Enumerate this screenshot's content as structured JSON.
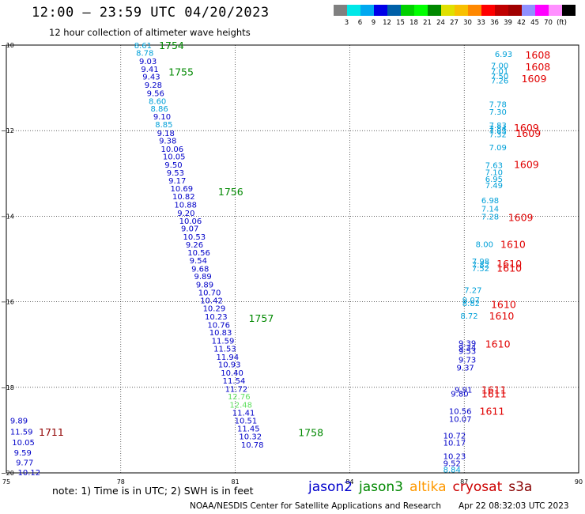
{
  "title": "12:00 – 23:59 UTC 04/20/2023",
  "subtitle": "12 hour collection of altimeter wave heights",
  "scale": {
    "colors": [
      "#808080",
      "#00e8e8",
      "#00a8f0",
      "#0000e8",
      "#0060a8",
      "#00d000",
      "#00ff00",
      "#008800",
      "#e0e000",
      "#f8c000",
      "#ff8800",
      "#ff0000",
      "#c00000",
      "#a00000",
      "#9090ff",
      "#ff00ff",
      "#ff90ff",
      "#000000"
    ],
    "labels": [
      "3",
      "6",
      "9",
      "12",
      "15",
      "18",
      "21",
      "24",
      "27",
      "30",
      "33",
      "36",
      "39",
      "42",
      "45",
      "70",
      "(ft)"
    ]
  },
  "axes": {
    "lon_labels": [
      "75",
      "78",
      "81",
      "84",
      "87",
      "90"
    ],
    "lat_labels": [
      "−10",
      "−12",
      "−14",
      "−16",
      "−18",
      "−20"
    ]
  },
  "tracks": [
    {
      "color": "#0000c8",
      "points": [
        {
          "lat": -10.0,
          "lon": 78.35,
          "v": "8.61",
          "c": "#00a0d8"
        },
        {
          "lat": -10.18,
          "lon": 78.4,
          "v": "8.78",
          "c": "#00a0d8"
        },
        {
          "lat": -10.37,
          "lon": 78.48,
          "v": "9.03"
        },
        {
          "lat": -10.55,
          "lon": 78.53,
          "v": "9.41"
        },
        {
          "lat": -10.73,
          "lon": 78.57,
          "v": "9.43"
        },
        {
          "lat": -10.92,
          "lon": 78.62,
          "v": "9.28"
        },
        {
          "lat": -11.12,
          "lon": 78.68,
          "v": "9.56"
        },
        {
          "lat": -11.3,
          "lon": 78.73,
          "v": "8.60",
          "c": "#00a0d8"
        },
        {
          "lat": -11.48,
          "lon": 78.78,
          "v": "8.86",
          "c": "#00a0d8"
        },
        {
          "lat": -11.66,
          "lon": 78.85,
          "v": "9.10"
        },
        {
          "lat": -11.85,
          "lon": 78.9,
          "v": "8.85",
          "c": "#00a0d8"
        },
        {
          "lat": -12.05,
          "lon": 78.95,
          "v": "9.18"
        },
        {
          "lat": -12.23,
          "lon": 79.0,
          "v": "9.38"
        },
        {
          "lat": -12.42,
          "lon": 79.05,
          "v": "10.06"
        },
        {
          "lat": -12.6,
          "lon": 79.1,
          "v": "10.05"
        },
        {
          "lat": -12.79,
          "lon": 79.15,
          "v": "9.50"
        },
        {
          "lat": -12.98,
          "lon": 79.2,
          "v": "9.53"
        },
        {
          "lat": -13.16,
          "lon": 79.25,
          "v": "9.17"
        },
        {
          "lat": -13.35,
          "lon": 79.3,
          "v": "10.69"
        },
        {
          "lat": -13.53,
          "lon": 79.35,
          "v": "10.82"
        },
        {
          "lat": -13.72,
          "lon": 79.4,
          "v": "10.88"
        },
        {
          "lat": -13.92,
          "lon": 79.48,
          "v": "9.20"
        },
        {
          "lat": -14.1,
          "lon": 79.53,
          "v": "10.06"
        },
        {
          "lat": -14.28,
          "lon": 79.58,
          "v": "9.07"
        },
        {
          "lat": -14.47,
          "lon": 79.63,
          "v": "10.53"
        },
        {
          "lat": -14.66,
          "lon": 79.7,
          "v": "9.26"
        },
        {
          "lat": -14.84,
          "lon": 79.75,
          "v": "10.56"
        },
        {
          "lat": -15.03,
          "lon": 79.8,
          "v": "9.54"
        },
        {
          "lat": -15.22,
          "lon": 79.85,
          "v": "9.68"
        },
        {
          "lat": -15.4,
          "lon": 79.92,
          "v": "9.89"
        },
        {
          "lat": -15.59,
          "lon": 79.97,
          "v": "9.89"
        },
        {
          "lat": -15.78,
          "lon": 80.03,
          "v": "10.70"
        },
        {
          "lat": -15.96,
          "lon": 80.08,
          "v": "10.42"
        },
        {
          "lat": -16.15,
          "lon": 80.15,
          "v": "10.29"
        },
        {
          "lat": -16.34,
          "lon": 80.2,
          "v": "10.23"
        },
        {
          "lat": -16.53,
          "lon": 80.27,
          "v": "10.76"
        },
        {
          "lat": -16.71,
          "lon": 80.32,
          "v": "10.83"
        },
        {
          "lat": -16.9,
          "lon": 80.38,
          "v": "11.59"
        },
        {
          "lat": -17.09,
          "lon": 80.43,
          "v": "11.53"
        },
        {
          "lat": -17.28,
          "lon": 80.5,
          "v": "11.94"
        },
        {
          "lat": -17.46,
          "lon": 80.55,
          "v": "10.93"
        },
        {
          "lat": -17.65,
          "lon": 80.62,
          "v": "10.40"
        },
        {
          "lat": -17.84,
          "lon": 80.67,
          "v": "11.54"
        },
        {
          "lat": -18.03,
          "lon": 80.73,
          "v": "11.72"
        },
        {
          "lat": -18.21,
          "lon": 80.8,
          "v": "12.76",
          "c": "#60e060"
        },
        {
          "lat": -18.4,
          "lon": 80.85,
          "v": "12.48",
          "c": "#60e060"
        },
        {
          "lat": -18.59,
          "lon": 80.92,
          "v": "11.41"
        },
        {
          "lat": -18.77,
          "lon": 80.98,
          "v": "10.51"
        },
        {
          "lat": -18.96,
          "lon": 81.05,
          "v": "11.45"
        },
        {
          "lat": -19.14,
          "lon": 81.1,
          "v": "10.32"
        },
        {
          "lat": -19.33,
          "lon": 81.15,
          "v": "10.78"
        }
      ]
    },
    {
      "color": "#0000c8",
      "points": [
        {
          "lat": -18.77,
          "lon": 75.1,
          "v": "9.89"
        },
        {
          "lat": -19.03,
          "lon": 75.1,
          "v": "11.59"
        },
        {
          "lat": -19.28,
          "lon": 75.15,
          "v": "10.05"
        },
        {
          "lat": -19.52,
          "lon": 75.2,
          "v": "9.59"
        },
        {
          "lat": -19.75,
          "lon": 75.25,
          "v": "9.77"
        },
        {
          "lat": -19.98,
          "lon": 75.3,
          "v": "10.12"
        }
      ]
    },
    {
      "color": "#00a0d8",
      "points": [
        {
          "lat": -10.2,
          "lon": 87.8,
          "v": "6.93"
        },
        {
          "lat": -10.47,
          "lon": 87.7,
          "v": "7.00"
        },
        {
          "lat": -10.6,
          "lon": 87.7,
          "v": "7.01"
        },
        {
          "lat": -10.72,
          "lon": 87.7,
          "v": "7.50"
        },
        {
          "lat": -10.82,
          "lon": 87.7,
          "v": "7.26"
        },
        {
          "lat": -11.38,
          "lon": 87.65,
          "v": "7.78"
        },
        {
          "lat": -11.55,
          "lon": 87.65,
          "v": "7.30"
        },
        {
          "lat": -11.87,
          "lon": 87.65,
          "v": "7.83"
        },
        {
          "lat": -11.94,
          "lon": 87.65,
          "v": "7.84"
        },
        {
          "lat": -12.0,
          "lon": 87.65,
          "v": "7.83"
        },
        {
          "lat": -12.08,
          "lon": 87.65,
          "v": "7.32"
        },
        {
          "lat": -12.38,
          "lon": 87.65,
          "v": "7.09"
        },
        {
          "lat": -12.8,
          "lon": 87.55,
          "v": "7.63"
        },
        {
          "lat": -12.97,
          "lon": 87.55,
          "v": "7.10"
        },
        {
          "lat": -13.12,
          "lon": 87.55,
          "v": "6.95"
        },
        {
          "lat": -13.27,
          "lon": 87.55,
          "v": "7.49"
        },
        {
          "lat": -13.62,
          "lon": 87.45,
          "v": "6.98"
        },
        {
          "lat": -13.82,
          "lon": 87.45,
          "v": "7.14"
        },
        {
          "lat": -14.0,
          "lon": 87.45,
          "v": "7.28"
        },
        {
          "lat": -14.65,
          "lon": 87.3,
          "v": "8.00"
        },
        {
          "lat": -15.05,
          "lon": 87.2,
          "v": "7.98"
        },
        {
          "lat": -15.13,
          "lon": 87.2,
          "v": "7.82"
        },
        {
          "lat": -15.21,
          "lon": 87.2,
          "v": "7.52"
        },
        {
          "lat": -15.72,
          "lon": 87.0,
          "v": "7.27"
        },
        {
          "lat": -15.95,
          "lon": 86.95,
          "v": "9.07"
        },
        {
          "lat": -16.03,
          "lon": 86.95,
          "v": "8.82"
        },
        {
          "lat": -16.32,
          "lon": 86.9,
          "v": "8.72"
        }
      ]
    },
    {
      "color": "#0000c8",
      "points": [
        {
          "lat": -16.96,
          "lon": 86.85,
          "v": "9.39"
        },
        {
          "lat": -17.06,
          "lon": 86.85,
          "v": "9.34"
        },
        {
          "lat": -17.14,
          "lon": 86.85,
          "v": "9.53"
        },
        {
          "lat": -17.35,
          "lon": 86.85,
          "v": "9.73"
        },
        {
          "lat": -17.53,
          "lon": 86.8,
          "v": "9.37"
        },
        {
          "lat": -18.05,
          "lon": 86.75,
          "v": "9.91"
        },
        {
          "lat": -18.14,
          "lon": 86.65,
          "v": "9.80"
        },
        {
          "lat": -18.55,
          "lon": 86.6,
          "v": "10.56"
        },
        {
          "lat": -18.73,
          "lon": 86.6,
          "v": "10.07"
        },
        {
          "lat": -19.12,
          "lon": 86.45,
          "v": "10.72"
        },
        {
          "lat": -19.29,
          "lon": 86.45,
          "v": "10.17"
        },
        {
          "lat": -19.6,
          "lon": 86.45,
          "v": "10.23"
        },
        {
          "lat": -19.77,
          "lon": 86.45,
          "v": "9.52"
        },
        {
          "lat": -19.92,
          "lon": 86.45,
          "v": "8.84",
          "c": "#00a0d8"
        }
      ]
    }
  ],
  "times": [
    {
      "lat": -10.0,
      "lon": 79.0,
      "t": "1754",
      "c": "#008800"
    },
    {
      "lat": -10.62,
      "lon": 79.25,
      "t": "1755",
      "c": "#008800"
    },
    {
      "lat": -13.42,
      "lon": 80.55,
      "t": "1756",
      "c": "#008800"
    },
    {
      "lat": -16.38,
      "lon": 81.35,
      "t": "1757",
      "c": "#008800"
    },
    {
      "lat": -19.05,
      "lon": 82.65,
      "t": "1758",
      "c": "#008800"
    },
    {
      "lat": -19.04,
      "lon": 75.85,
      "t": "1711",
      "c": "#900000"
    },
    {
      "lat": -10.22,
      "lon": 88.6,
      "t": "1608",
      "c": "#e00000"
    },
    {
      "lat": -10.5,
      "lon": 88.6,
      "t": "1608",
      "c": "#e00000"
    },
    {
      "lat": -10.78,
      "lon": 88.5,
      "t": "1609",
      "c": "#e00000"
    },
    {
      "lat": -11.92,
      "lon": 88.3,
      "t": "1609",
      "c": "#e00000"
    },
    {
      "lat": -12.05,
      "lon": 88.35,
      "t": "1609",
      "c": "#e00000"
    },
    {
      "lat": -12.78,
      "lon": 88.3,
      "t": "1609",
      "c": "#e00000"
    },
    {
      "lat": -14.02,
      "lon": 88.15,
      "t": "1609",
      "c": "#e00000"
    },
    {
      "lat": -14.65,
      "lon": 87.95,
      "t": "1610",
      "c": "#e00000"
    },
    {
      "lat": -15.1,
      "lon": 87.85,
      "t": "1610",
      "c": "#e00000"
    },
    {
      "lat": -15.2,
      "lon": 87.85,
      "t": "1610",
      "c": "#e00000"
    },
    {
      "lat": -16.05,
      "lon": 87.7,
      "t": "1610",
      "c": "#e00000"
    },
    {
      "lat": -16.32,
      "lon": 87.65,
      "t": "1610",
      "c": "#e00000"
    },
    {
      "lat": -16.98,
      "lon": 87.55,
      "t": "1610",
      "c": "#e00000"
    },
    {
      "lat": -18.05,
      "lon": 87.45,
      "t": "1611",
      "c": "#e00000"
    },
    {
      "lat": -18.14,
      "lon": 87.45,
      "t": "1611",
      "c": "#e00000"
    },
    {
      "lat": -18.55,
      "lon": 87.4,
      "t": "1611",
      "c": "#e00000"
    }
  ],
  "note": "note:  1) Time is in UTC; 2) SWH is in feet",
  "legend": [
    {
      "name": "jason2",
      "color": "#0000cc"
    },
    {
      "name": "jason3",
      "color": "#008800"
    },
    {
      "name": "altika",
      "color": "#ff9900"
    },
    {
      "name": "cryosat",
      "color": "#cc0000"
    },
    {
      "name": "s3a",
      "color": "#880000"
    }
  ],
  "credit": "NOAA/NESDIS Center for Satellite Applications and Research",
  "stamp": "Apr 22 08:32:03 UTC 2023"
}
